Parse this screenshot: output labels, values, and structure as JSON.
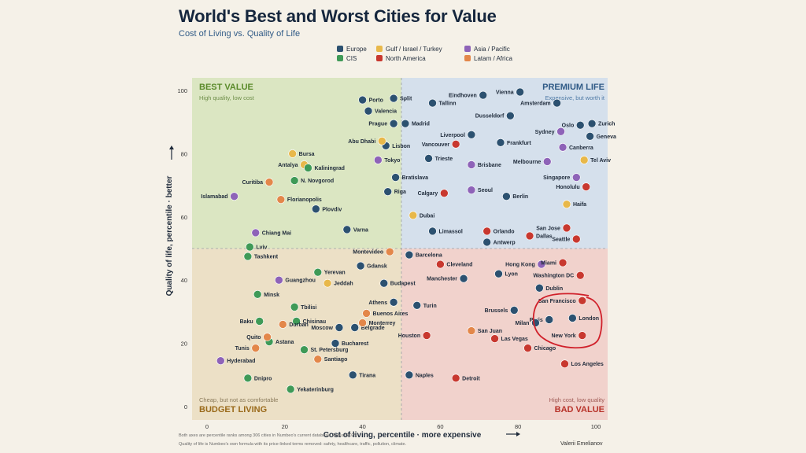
{
  "title": "World's Best and Worst Cities for Value",
  "subtitle": "Cost of Living vs. Quality of Life",
  "legend": [
    {
      "name": "Europe",
      "color": "#2c5170"
    },
    {
      "name": "Gulf / Israel / Turkey",
      "color": "#e8b84a"
    },
    {
      "name": "Asia / Pacific",
      "color": "#8e63b8"
    },
    {
      "name": "CIS",
      "color": "#3f9a57"
    },
    {
      "name": "North America",
      "color": "#c8382f"
    },
    {
      "name": "Latam / Africa",
      "color": "#e3874a"
    }
  ],
  "quadrants": {
    "tl": {
      "title": "BEST VALUE",
      "sub": "High quality, low cost"
    },
    "tr": {
      "title": "PREMIUM LIFE",
      "sub": "Expensive, but worth it"
    },
    "bl": {
      "title": "BUDGET LIVING",
      "sub": "Cheap, but not as comfortable"
    },
    "br": {
      "title": "BAD VALUE",
      "sub": "High cost, low quality"
    }
  },
  "footnote1": "Both axes are percentile ranks among 306 cities in Numbeo's current database, August 2025.",
  "footnote2": "Quality of life is Numbeo's own formula with its price-linked terms removed: safety, healthcare, traffic, pollution, climate.",
  "author": "Valerii Emelianov",
  "chart_data": {
    "type": "scatter",
    "xlabel": "Cost of living, percentile  ·  more expensive",
    "ylabel": "Quality of life, percentile  ·  better",
    "xlim": [
      0,
      100
    ],
    "ylim": [
      0,
      100
    ],
    "xticks": [
      0,
      20,
      40,
      60,
      80,
      100
    ],
    "yticks": [
      0,
      20,
      40,
      60,
      80,
      100
    ],
    "grid": false,
    "legend_position": "top",
    "quadrant_split": [
      50,
      50
    ],
    "series": [
      {
        "name": "Europe",
        "color": "#2c5170",
        "points": [
          {
            "label": "Porto",
            "x": 40,
            "y": 97
          },
          {
            "label": "Split",
            "x": 48,
            "y": 97.5
          },
          {
            "label": "Valencia",
            "x": 41.5,
            "y": 93.5
          },
          {
            "label": "Prague",
            "x": 48,
            "y": 89.5
          },
          {
            "label": "Madrid",
            "x": 51,
            "y": 89.5
          },
          {
            "label": "Tallinn",
            "x": 58,
            "y": 96
          },
          {
            "label": "Eindhoven",
            "x": 71,
            "y": 98.5
          },
          {
            "label": "Vienna",
            "x": 80.5,
            "y": 99.5
          },
          {
            "label": "Amsterdam",
            "x": 90,
            "y": 96
          },
          {
            "label": "Zurich",
            "x": 99,
            "y": 89.5
          },
          {
            "label": "Oslo",
            "x": 96,
            "y": 89
          },
          {
            "label": "Geneva",
            "x": 98.5,
            "y": 85.5
          },
          {
            "label": "Dusseldorf",
            "x": 78,
            "y": 92
          },
          {
            "label": "Liverpool",
            "x": 68,
            "y": 86
          },
          {
            "label": "Frankfurt",
            "x": 75.5,
            "y": 83.5
          },
          {
            "label": "Lisbon",
            "x": 46,
            "y": 82.5
          },
          {
            "label": "Trieste",
            "x": 57,
            "y": 78.5
          },
          {
            "label": "Bratislava",
            "x": 48.5,
            "y": 72.5
          },
          {
            "label": "Riga",
            "x": 46.5,
            "y": 68
          },
          {
            "label": "Berlin",
            "x": 77,
            "y": 66.5
          },
          {
            "label": "Plovdiv",
            "x": 28,
            "y": 62.5
          },
          {
            "label": "Varna",
            "x": 36,
            "y": 56
          },
          {
            "label": "Limassol",
            "x": 58,
            "y": 55.5
          },
          {
            "label": "Antwerp",
            "x": 72,
            "y": 52
          },
          {
            "label": "Barcelona",
            "x": 52,
            "y": 48
          },
          {
            "label": "Gdansk",
            "x": 39.5,
            "y": 44.5
          },
          {
            "label": "Budapest",
            "x": 45.5,
            "y": 39
          },
          {
            "label": "Athens",
            "x": 48,
            "y": 33
          },
          {
            "label": "Turin",
            "x": 54,
            "y": 32
          },
          {
            "label": "Manchester",
            "x": 66,
            "y": 40.5
          },
          {
            "label": "Lyon",
            "x": 75,
            "y": 42
          },
          {
            "label": "Dublin",
            "x": 85.5,
            "y": 37.5
          },
          {
            "label": "Brussels",
            "x": 79,
            "y": 30.5
          },
          {
            "label": "Paris",
            "x": 88,
            "y": 27.5
          },
          {
            "label": "Milan",
            "x": 84.5,
            "y": 26.5
          },
          {
            "label": "London",
            "x": 94,
            "y": 28
          },
          {
            "label": "Moscow",
            "x": 34,
            "y": 25
          },
          {
            "label": "Belgrade",
            "x": 38,
            "y": 25
          },
          {
            "label": "Bucharest",
            "x": 33,
            "y": 20
          },
          {
            "label": "Tirana",
            "x": 37.5,
            "y": 10
          },
          {
            "label": "Naples",
            "x": 52,
            "y": 10
          }
        ]
      },
      {
        "name": "Gulf / Israel / Turkey",
        "color": "#e8b84a",
        "points": [
          {
            "label": "Abu Dhabi",
            "x": 45,
            "y": 84
          },
          {
            "label": "Bursa",
            "x": 22,
            "y": 80
          },
          {
            "label": "Antalya",
            "x": 25,
            "y": 76.5
          },
          {
            "label": "Tel Aviv",
            "x": 97,
            "y": 78
          },
          {
            "label": "Haifa",
            "x": 92.5,
            "y": 64
          },
          {
            "label": "Dubai",
            "x": 53,
            "y": 60.5
          },
          {
            "label": "Jeddah",
            "x": 31,
            "y": 39
          }
        ]
      },
      {
        "name": "Asia / Pacific",
        "color": "#8e63b8",
        "points": [
          {
            "label": "Sydney",
            "x": 91,
            "y": 87
          },
          {
            "label": "Canberra",
            "x": 91.5,
            "y": 82
          },
          {
            "label": "Tokyo",
            "x": 44,
            "y": 78
          },
          {
            "label": "Brisbane",
            "x": 68,
            "y": 76.5
          },
          {
            "label": "Melbourne",
            "x": 87.5,
            "y": 77.5
          },
          {
            "label": "Singapore",
            "x": 95,
            "y": 72.5
          },
          {
            "label": "Seoul",
            "x": 68,
            "y": 68.5
          },
          {
            "label": "Islamabad",
            "x": 7,
            "y": 66.5
          },
          {
            "label": "Chiang Mai",
            "x": 12.5,
            "y": 55
          },
          {
            "label": "Hong Kong",
            "x": 86,
            "y": 45
          },
          {
            "label": "Guangzhou",
            "x": 18.5,
            "y": 40
          },
          {
            "label": "Hyderabad",
            "x": 3.5,
            "y": 14.5
          }
        ]
      },
      {
        "name": "CIS",
        "color": "#3f9a57",
        "points": [
          {
            "label": "Kaliningrad",
            "x": 26,
            "y": 75.5
          },
          {
            "label": "N. Novgorod",
            "x": 22.5,
            "y": 71.5
          },
          {
            "label": "Lviv",
            "x": 11,
            "y": 50.5
          },
          {
            "label": "Tashkent",
            "x": 10.5,
            "y": 47.5
          },
          {
            "label": "Yerevan",
            "x": 28.5,
            "y": 42.5
          },
          {
            "label": "Minsk",
            "x": 13,
            "y": 35.5
          },
          {
            "label": "Tbilisi",
            "x": 22.5,
            "y": 31.5
          },
          {
            "label": "Baku",
            "x": 13.5,
            "y": 27
          },
          {
            "label": "Chisinau",
            "x": 23,
            "y": 27
          },
          {
            "label": "Astana",
            "x": 16,
            "y": 20.5
          },
          {
            "label": "St. Petersburg",
            "x": 25,
            "y": 18
          },
          {
            "label": "Dnipro",
            "x": 10.5,
            "y": 9
          },
          {
            "label": "Yekaterinburg",
            "x": 21.5,
            "y": 5.5
          }
        ]
      },
      {
        "name": "North America",
        "color": "#c8382f",
        "points": [
          {
            "label": "Vancouver",
            "x": 64,
            "y": 83
          },
          {
            "label": "Honolulu",
            "x": 97.5,
            "y": 69.5
          },
          {
            "label": "Calgary",
            "x": 61,
            "y": 67.5
          },
          {
            "label": "San Jose",
            "x": 92.5,
            "y": 56.5
          },
          {
            "label": "Orlando",
            "x": 72,
            "y": 55.5
          },
          {
            "label": "Dallas",
            "x": 83,
            "y": 54
          },
          {
            "label": "Seattle",
            "x": 95,
            "y": 53
          },
          {
            "label": "Cleveland",
            "x": 60,
            "y": 45
          },
          {
            "label": "Miami",
            "x": 91.5,
            "y": 45.5
          },
          {
            "label": "Washington DC",
            "x": 96,
            "y": 41.5
          },
          {
            "label": "San Francisco",
            "x": 96.5,
            "y": 33.5
          },
          {
            "label": "Houston",
            "x": 56.5,
            "y": 22.5
          },
          {
            "label": "Las Vegas",
            "x": 74,
            "y": 21.5
          },
          {
            "label": "New York",
            "x": 96.5,
            "y": 22.5
          },
          {
            "label": "Chicago",
            "x": 82.5,
            "y": 18.5
          },
          {
            "label": "Los Angeles",
            "x": 92,
            "y": 13.5
          },
          {
            "label": "Detroit",
            "x": 64,
            "y": 9
          }
        ]
      },
      {
        "name": "Latam / Africa",
        "color": "#e3874a",
        "points": [
          {
            "label": "Curitiba",
            "x": 16,
            "y": 71
          },
          {
            "label": "Florianopolis",
            "x": 19,
            "y": 65.5
          },
          {
            "label": "Montevideo",
            "x": 47,
            "y": 49
          },
          {
            "label": "Buenos Aires",
            "x": 41,
            "y": 29.5
          },
          {
            "label": "Monterrey",
            "x": 40,
            "y": 26.5
          },
          {
            "label": "Durban",
            "x": 19.5,
            "y": 26
          },
          {
            "label": "Quito",
            "x": 15.5,
            "y": 22
          },
          {
            "label": "Tunis",
            "x": 12.5,
            "y": 18.5
          },
          {
            "label": "Santiago",
            "x": 28.5,
            "y": 15
          },
          {
            "label": "San Juan",
            "x": 68,
            "y": 24
          }
        ]
      }
    ],
    "annotation": {
      "type": "hand-drawn circle",
      "cities": [
        "San Francisco",
        "Paris",
        "Milan",
        "London",
        "New York"
      ]
    }
  }
}
